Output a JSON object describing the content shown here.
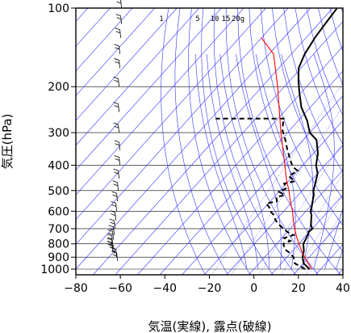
{
  "chart_data": {
    "type": "line",
    "title": "",
    "xlabel": "気温(実線), 露点(破線)",
    "ylabel": "気圧(hPa)",
    "x_axis": {
      "min": -80,
      "max": 40,
      "ticks": [
        -80,
        -60,
        -40,
        -20,
        0,
        20,
        40
      ],
      "tick_labels": [
        "−80",
        "−60",
        "−40",
        "−20",
        "0",
        "20",
        "40"
      ]
    },
    "y_axis": {
      "scale": "log",
      "min": 100,
      "max": 1050,
      "ticks": [
        100,
        200,
        300,
        400,
        500,
        600,
        700,
        800,
        900,
        1000
      ],
      "tick_labels": [
        "100",
        "200",
        "300",
        "400",
        "500",
        "600",
        "700",
        "800",
        "900",
        "1000"
      ]
    },
    "grid": true,
    "mixing_ratio_labels": [
      "1",
      "5",
      "10",
      "15",
      "20g"
    ],
    "series": [
      {
        "style": "solid",
        "color": "#000000",
        "points": [
          [
            25,
            1000
          ],
          [
            20,
            950
          ],
          [
            17,
            900
          ],
          [
            15,
            850
          ],
          [
            12,
            800
          ],
          [
            11,
            760
          ],
          [
            10,
            730
          ],
          [
            9.5,
            720
          ],
          [
            10,
            700
          ],
          [
            8,
            680
          ],
          [
            6,
            650
          ],
          [
            4,
            620
          ],
          [
            2,
            600
          ],
          [
            1,
            580
          ],
          [
            -1,
            550
          ],
          [
            -3,
            520
          ],
          [
            -5,
            500
          ],
          [
            -7,
            470
          ],
          [
            -10,
            430
          ],
          [
            -14,
            400
          ],
          [
            -18,
            360
          ],
          [
            -24,
            320
          ],
          [
            -30,
            300
          ],
          [
            -36,
            270
          ],
          [
            -44,
            240
          ],
          [
            -51,
            210
          ],
          [
            -56,
            190
          ],
          [
            -61,
            170
          ],
          [
            -64,
            150
          ],
          [
            -66,
            130
          ],
          [
            -67,
            115
          ],
          [
            -68,
            100
          ]
        ]
      },
      {
        "style": "dashed",
        "color": "#000000",
        "points": [
          [
            23,
            1000
          ],
          [
            16,
            950
          ],
          [
            13,
            900
          ],
          [
            10,
            870
          ],
          [
            6,
            840
          ],
          [
            3,
            800
          ],
          [
            5,
            780
          ],
          [
            1,
            760
          ],
          [
            4,
            740
          ],
          [
            0,
            720
          ],
          [
            -3,
            700
          ],
          [
            -6,
            680
          ],
          [
            -10,
            650
          ],
          [
            -13,
            620
          ],
          [
            -16,
            600
          ],
          [
            -18,
            580
          ],
          [
            -21,
            560
          ],
          [
            -17,
            550
          ],
          [
            -19,
            530
          ],
          [
            -16,
            520
          ],
          [
            -20,
            505
          ],
          [
            -18,
            490
          ],
          [
            -21,
            470
          ],
          [
            -17,
            460
          ],
          [
            -22,
            440
          ],
          [
            -20,
            420
          ],
          [
            -24,
            405
          ],
          [
            -28,
            380
          ],
          [
            -33,
            350
          ],
          [
            -38,
            320
          ],
          [
            -43,
            295
          ],
          [
            -46,
            275
          ],
          [
            -47,
            265
          ],
          [
            -78,
            265
          ]
        ]
      },
      {
        "name": "",
        "style": "solid",
        "color": "#ff0000",
        "points": [
          [
            26,
            1000
          ],
          [
            22,
            950
          ],
          [
            18,
            900
          ],
          [
            14,
            850
          ],
          [
            10,
            800
          ],
          [
            6,
            750
          ],
          [
            2,
            700
          ],
          [
            -2,
            650
          ],
          [
            -6,
            600
          ],
          [
            -11,
            550
          ],
          [
            -16,
            500
          ],
          [
            -22,
            450
          ],
          [
            -28,
            400
          ],
          [
            -35,
            350
          ],
          [
            -43,
            300
          ],
          [
            -52,
            250
          ],
          [
            -63,
            200
          ],
          [
            -78,
            150
          ],
          [
            -90,
            130
          ]
        ]
      }
    ],
    "reference_lines": {
      "isotherms_step": 10,
      "dry_adiabat_thetas": [
        250,
        260,
        270,
        280,
        290,
        300,
        310,
        320,
        330,
        340,
        350,
        360,
        370,
        380,
        390,
        400,
        410,
        420,
        430,
        440,
        450,
        460,
        470,
        480
      ],
      "moist_adiabat_thetas": [
        270,
        275,
        280,
        285,
        290,
        295,
        300,
        305,
        310,
        315,
        320,
        325,
        330
      ],
      "mixing_ratios": [
        1,
        2,
        5,
        10,
        15,
        20
      ],
      "color": "#3333ff"
    },
    "wind_barbs": [
      {
        "p": 930,
        "offset": 0
      },
      {
        "p": 900,
        "offset": -1
      },
      {
        "p": 870,
        "offset": -4
      },
      {
        "p": 850,
        "offset": -6
      },
      {
        "p": 830,
        "offset": -6
      },
      {
        "p": 800,
        "offset": -6
      },
      {
        "p": 770,
        "offset": -5
      },
      {
        "p": 740,
        "offset": -4
      },
      {
        "p": 700,
        "offset": -3
      },
      {
        "p": 650,
        "offset": -2
      },
      {
        "p": 600,
        "offset": -1
      },
      {
        "p": 550,
        "offset": 0
      },
      {
        "p": 500,
        "offset": 1
      },
      {
        "p": 450,
        "offset": 2
      },
      {
        "p": 400,
        "offset": 3
      },
      {
        "p": 350,
        "offset": 3
      },
      {
        "p": 300,
        "offset": 2
      },
      {
        "p": 250,
        "offset": 2
      },
      {
        "p": 200,
        "offset": 2
      },
      {
        "p": 170,
        "offset": 3
      },
      {
        "p": 150,
        "offset": 3
      },
      {
        "p": 130,
        "offset": 4
      },
      {
        "p": 115,
        "offset": 5
      },
      {
        "p": 100,
        "offset": 5
      }
    ]
  }
}
